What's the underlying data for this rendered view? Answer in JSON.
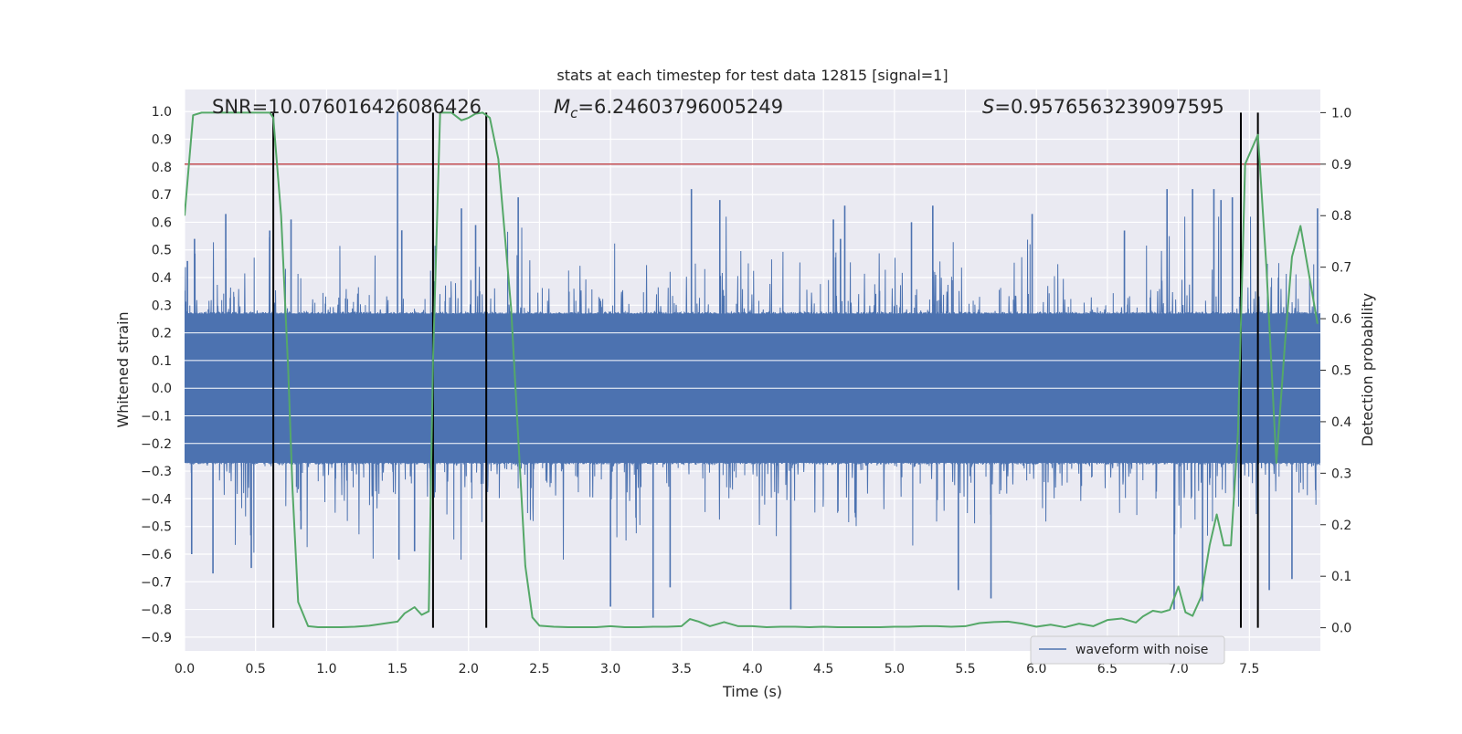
{
  "chart_data": {
    "type": "line",
    "title": "stats at each timestep for test data 12815 [signal=1]",
    "xlabel": "Time (s)",
    "ylabel_left": "Whitened strain",
    "ylabel_right": "Detection probability",
    "xlim": [
      0.0,
      8.0
    ],
    "ylim_left": [
      -0.95,
      1.08
    ],
    "ylim_right": [
      -0.045,
      1.045
    ],
    "x_ticks": [
      0.0,
      0.5,
      1.0,
      1.5,
      2.0,
      2.5,
      3.0,
      3.5,
      4.0,
      4.5,
      5.0,
      5.5,
      6.0,
      6.5,
      7.0,
      7.5
    ],
    "x_tick_labels": [
      "0.0",
      "0.5",
      "1.0",
      "1.5",
      "2.0",
      "2.5",
      "3.0",
      "3.5",
      "4.0",
      "4.5",
      "5.0",
      "5.5",
      "6.0",
      "6.5",
      "7.0",
      "7.5"
    ],
    "y_left_ticks": [
      1.0,
      0.9,
      0.8,
      0.7,
      0.6,
      0.5,
      0.4,
      0.3,
      0.2,
      0.1,
      0.0,
      -0.1,
      -0.2,
      -0.3,
      -0.4,
      -0.5,
      -0.6,
      -0.7,
      -0.8,
      -0.9
    ],
    "y_left_tick_labels": [
      "1.0",
      "0.9",
      "0.8",
      "0.7",
      "0.6",
      "0.5",
      "0.4",
      "0.3",
      "0.2",
      "0.1",
      "0.0",
      "−0.1",
      "−0.2",
      "−0.3",
      "−0.4",
      "−0.5",
      "−0.6",
      "−0.7",
      "−0.8",
      "−0.9"
    ],
    "y_right_ticks": [
      1.0,
      0.9,
      0.8,
      0.7,
      0.6,
      0.5,
      0.4,
      0.3,
      0.2,
      0.1,
      0.0
    ],
    "y_right_tick_labels": [
      "1.0",
      "0.9",
      "0.8",
      "0.7",
      "0.6",
      "0.5",
      "0.4",
      "0.3",
      "0.2",
      "0.1",
      "0.0"
    ],
    "annotations": {
      "snr": "SNR=10.076016426086426",
      "mc_symbol": "M",
      "mc_subscript": "c",
      "mc_value": "=6.24603796005249",
      "s_symbol": "S",
      "s_value": "=0.9576563239097595"
    },
    "legend": {
      "label": "waveform with noise",
      "location": "lower right"
    },
    "threshold": {
      "value": 0.9,
      "axis": "right",
      "color": "#c44e52"
    },
    "detection_markers_s": [
      0.625,
      1.75,
      2.125,
      7.44,
      7.56
    ],
    "series": [
      {
        "name": "waveform with noise",
        "axis": "left",
        "color": "#4c72b0",
        "sample_rate_hz": 512,
        "envelope": {
          "core_amplitude": 0.27,
          "typical_peak": 0.45,
          "noise_seed": 12815
        },
        "spikes": [
          {
            "t": 0.02,
            "v": 0.46
          },
          {
            "t": 0.07,
            "v": 0.54
          },
          {
            "t": 0.29,
            "v": 0.63
          },
          {
            "t": 0.2,
            "v": -0.67
          },
          {
            "t": 0.05,
            "v": -0.6
          },
          {
            "t": 0.47,
            "v": -0.65
          },
          {
            "t": 0.6,
            "v": 0.57
          },
          {
            "t": 0.75,
            "v": 0.61
          },
          {
            "t": 0.82,
            "v": -0.51
          },
          {
            "t": 1.5,
            "v": 1.0
          },
          {
            "t": 1.53,
            "v": 0.57
          },
          {
            "t": 1.51,
            "v": -0.62
          },
          {
            "t": 1.62,
            "v": -0.59
          },
          {
            "t": 1.95,
            "v": 0.65
          },
          {
            "t": 2.05,
            "v": 0.59
          },
          {
            "t": 2.35,
            "v": 0.69
          },
          {
            "t": 3.0,
            "v": -0.79
          },
          {
            "t": 3.3,
            "v": -0.83
          },
          {
            "t": 3.42,
            "v": -0.72
          },
          {
            "t": 3.57,
            "v": 0.72
          },
          {
            "t": 3.77,
            "v": 0.68
          },
          {
            "t": 4.27,
            "v": -0.8
          },
          {
            "t": 4.57,
            "v": 0.61
          },
          {
            "t": 4.65,
            "v": 0.66
          },
          {
            "t": 4.62,
            "v": 0.54
          },
          {
            "t": 5.12,
            "v": 0.6
          },
          {
            "t": 5.27,
            "v": 0.66
          },
          {
            "t": 5.45,
            "v": -0.73
          },
          {
            "t": 5.68,
            "v": -0.76
          },
          {
            "t": 5.97,
            "v": 0.63
          },
          {
            "t": 6.62,
            "v": 0.57
          },
          {
            "t": 6.92,
            "v": 0.72
          },
          {
            "t": 6.97,
            "v": -0.8
          },
          {
            "t": 7.1,
            "v": 0.72
          },
          {
            "t": 7.17,
            "v": -0.77
          },
          {
            "t": 7.25,
            "v": 0.72
          },
          {
            "t": 7.3,
            "v": 0.68
          },
          {
            "t": 7.38,
            "v": 0.69
          },
          {
            "t": 7.64,
            "v": -0.73
          },
          {
            "t": 7.8,
            "v": -0.69
          },
          {
            "t": 7.98,
            "v": 0.65
          }
        ]
      },
      {
        "name": "detection probability",
        "axis": "right",
        "color": "#55a868",
        "x": [
          0.0,
          0.06,
          0.12,
          0.2,
          0.3,
          0.4,
          0.5,
          0.55,
          0.6,
          0.625,
          0.68,
          0.73,
          0.76,
          0.8,
          0.87,
          0.94,
          1.0,
          1.1,
          1.2,
          1.3,
          1.4,
          1.5,
          1.55,
          1.62,
          1.67,
          1.72,
          1.75,
          1.8,
          1.88,
          1.95,
          2.0,
          2.05,
          2.1,
          2.15,
          2.21,
          2.3,
          2.4,
          2.45,
          2.5,
          2.6,
          2.7,
          2.8,
          2.9,
          3.0,
          3.1,
          3.2,
          3.3,
          3.4,
          3.5,
          3.56,
          3.62,
          3.7,
          3.8,
          3.9,
          4.0,
          4.1,
          4.2,
          4.3,
          4.4,
          4.5,
          4.6,
          4.7,
          4.8,
          4.9,
          5.0,
          5.1,
          5.2,
          5.3,
          5.4,
          5.5,
          5.6,
          5.7,
          5.8,
          5.9,
          6.0,
          6.1,
          6.2,
          6.3,
          6.4,
          6.5,
          6.6,
          6.7,
          6.75,
          6.82,
          6.88,
          6.94,
          7.0,
          7.05,
          7.1,
          7.16,
          7.22,
          7.27,
          7.32,
          7.37,
          7.42,
          7.47,
          7.56,
          7.62,
          7.69,
          7.75,
          7.8,
          7.86,
          7.93,
          7.98
        ],
        "y": [
          0.8,
          0.995,
          1.0,
          1.0,
          1.0,
          1.0,
          1.0,
          1.0,
          1.0,
          0.99,
          0.8,
          0.5,
          0.27,
          0.05,
          0.003,
          0.001,
          0.001,
          0.001,
          0.002,
          0.004,
          0.008,
          0.012,
          0.028,
          0.04,
          0.025,
          0.032,
          0.52,
          1.0,
          1.0,
          0.985,
          0.99,
          0.998,
          1.0,
          0.99,
          0.91,
          0.62,
          0.12,
          0.02,
          0.004,
          0.002,
          0.001,
          0.001,
          0.001,
          0.003,
          0.001,
          0.001,
          0.002,
          0.002,
          0.003,
          0.017,
          0.012,
          0.003,
          0.011,
          0.003,
          0.003,
          0.001,
          0.002,
          0.002,
          0.001,
          0.002,
          0.001,
          0.001,
          0.001,
          0.001,
          0.002,
          0.002,
          0.003,
          0.003,
          0.002,
          0.003,
          0.009,
          0.011,
          0.012,
          0.008,
          0.002,
          0.006,
          0.001,
          0.008,
          0.003,
          0.015,
          0.018,
          0.01,
          0.022,
          0.033,
          0.03,
          0.035,
          0.08,
          0.03,
          0.023,
          0.06,
          0.16,
          0.22,
          0.16,
          0.16,
          0.38,
          0.9,
          0.957,
          0.7,
          0.32,
          0.55,
          0.72,
          0.78,
          0.67,
          0.59
        ]
      }
    ]
  }
}
